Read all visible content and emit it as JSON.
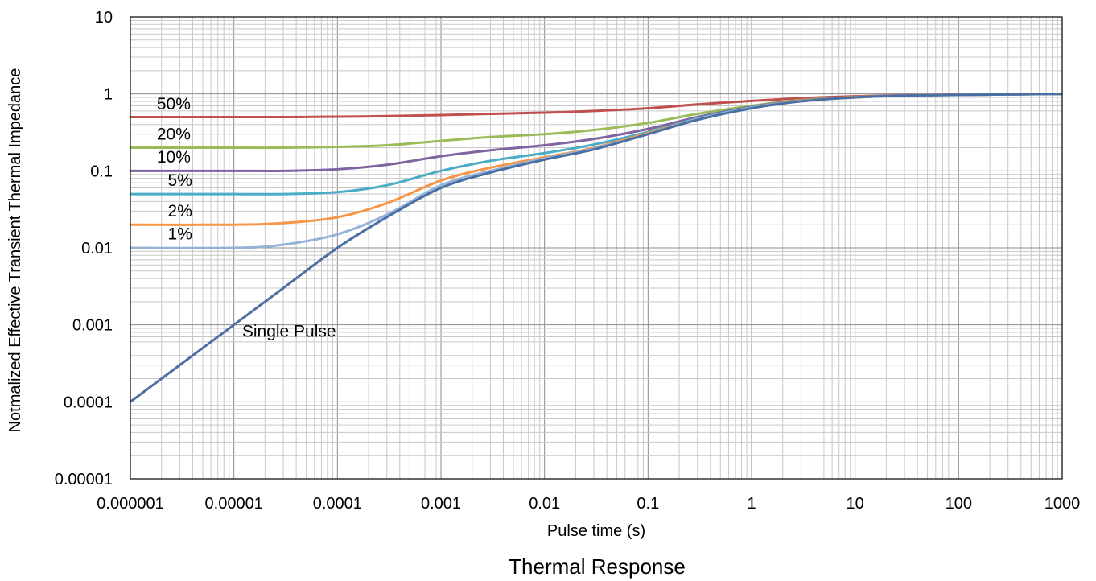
{
  "chart_data": {
    "type": "line",
    "title": "Thermal Response",
    "xlabel": "Pulse time (s)",
    "ylabel": "Notmalized Effective Transient Thermal Impedance",
    "x_scale": "log",
    "y_scale": "log",
    "xlim": [
      1e-06,
      1000
    ],
    "ylim": [
      1e-05,
      10
    ],
    "grid": true,
    "x_ticks": [
      "0.000001",
      "0.00001",
      "0.0001",
      "0.001",
      "0.01",
      "0.1",
      "1",
      "10",
      "100",
      "1000"
    ],
    "y_ticks": [
      "10",
      "1",
      "0.1",
      "0.01",
      "0.001",
      "0.0001",
      "0.00001"
    ],
    "x": [
      1e-06,
      1e-05,
      3e-05,
      0.0001,
      0.0003,
      0.001,
      0.003,
      0.01,
      0.03,
      0.1,
      0.3,
      1,
      3,
      10,
      30,
      100,
      1000
    ],
    "series": [
      {
        "name": "50%",
        "color": "#C0504D",
        "values": [
          0.5,
          0.5,
          0.5,
          0.505,
          0.515,
          0.53,
          0.55,
          0.57,
          0.6,
          0.65,
          0.73,
          0.81,
          0.88,
          0.93,
          0.96,
          0.98,
          1.0
        ]
      },
      {
        "name": "20%",
        "color": "#9BBB59",
        "values": [
          0.2,
          0.2,
          0.2,
          0.205,
          0.215,
          0.245,
          0.275,
          0.3,
          0.34,
          0.42,
          0.55,
          0.7,
          0.83,
          0.91,
          0.95,
          0.97,
          1.0
        ]
      },
      {
        "name": "10%",
        "color": "#8064A2",
        "values": [
          0.1,
          0.1,
          0.1,
          0.105,
          0.12,
          0.155,
          0.185,
          0.215,
          0.26,
          0.35,
          0.5,
          0.68,
          0.82,
          0.9,
          0.95,
          0.97,
          1.0
        ]
      },
      {
        "name": "5%",
        "color": "#4BACC6",
        "values": [
          0.05,
          0.05,
          0.05,
          0.053,
          0.065,
          0.1,
          0.135,
          0.17,
          0.22,
          0.32,
          0.48,
          0.67,
          0.81,
          0.9,
          0.95,
          0.97,
          1.0
        ]
      },
      {
        "name": "2%",
        "color": "#F79646",
        "values": [
          0.02,
          0.02,
          0.021,
          0.025,
          0.038,
          0.075,
          0.11,
          0.15,
          0.2,
          0.31,
          0.47,
          0.66,
          0.81,
          0.9,
          0.95,
          0.97,
          1.0
        ]
      },
      {
        "name": "1%",
        "color": "#95B3D7",
        "values": [
          0.01,
          0.01,
          0.011,
          0.015,
          0.027,
          0.065,
          0.1,
          0.145,
          0.195,
          0.3,
          0.47,
          0.66,
          0.8,
          0.9,
          0.95,
          0.97,
          1.0
        ]
      },
      {
        "name": "Single Pulse",
        "color": "#4A6FA5",
        "values": [
          0.0001,
          0.001,
          0.003,
          0.01,
          0.025,
          0.06,
          0.095,
          0.14,
          0.19,
          0.3,
          0.46,
          0.65,
          0.8,
          0.9,
          0.95,
          0.97,
          1.0
        ]
      }
    ],
    "labels": [
      {
        "text": "50%",
        "x": 1.8e-06,
        "y": 0.63
      },
      {
        "text": "20%",
        "x": 1.8e-06,
        "y": 0.255
      },
      {
        "text": "10%",
        "x": 1.8e-06,
        "y": 0.128
      },
      {
        "text": "5%",
        "x": 2.3e-06,
        "y": 0.064
      },
      {
        "text": "2%",
        "x": 2.3e-06,
        "y": 0.0255
      },
      {
        "text": "1%",
        "x": 2.3e-06,
        "y": 0.0128
      },
      {
        "text": "Single Pulse",
        "x": 1.2e-05,
        "y": 0.0007
      }
    ]
  }
}
